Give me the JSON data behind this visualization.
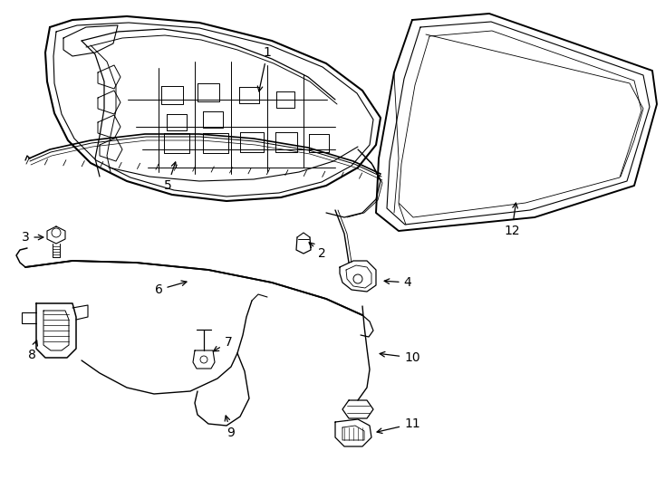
{
  "background_color": "#ffffff",
  "line_color": "#000000",
  "lw_thick": 1.3,
  "lw_med": 0.9,
  "lw_thin": 0.6,
  "label_fontsize": 10,
  "figsize": [
    7.34,
    5.4
  ],
  "dpi": 100
}
